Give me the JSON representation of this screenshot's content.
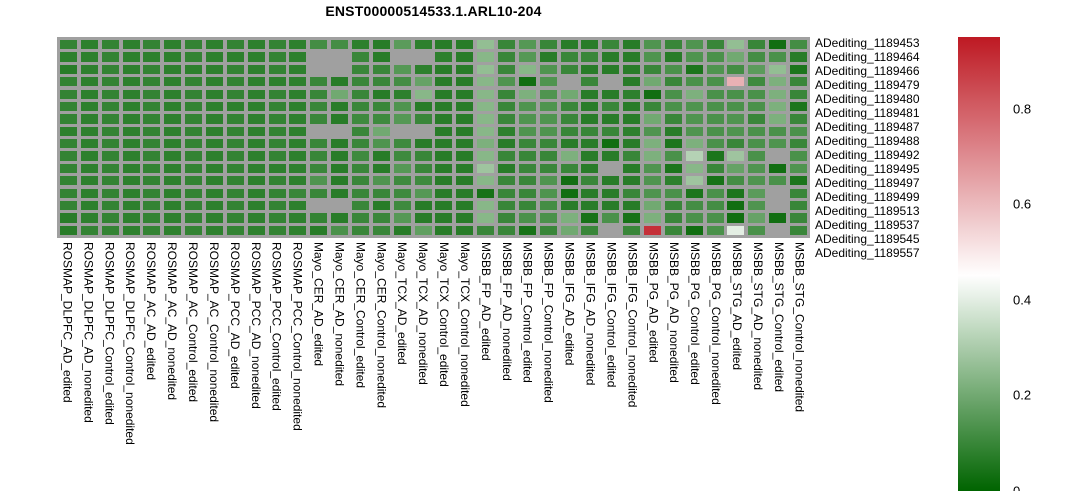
{
  "chart_data": {
    "type": "heatmap",
    "title": "ENST00000514533.1.ARL10-204",
    "legend_position": "right",
    "value_range": [
      0,
      0.95
    ],
    "colorbar_ticks": [
      0.8,
      0.6,
      0.4,
      0.2,
      0
    ],
    "colors": {
      "low": "#006400",
      "mid": "#ffffff",
      "high": "#be1923",
      "na": "#a0a0a0",
      "mid_value": 0.45,
      "max_value": 0.95
    },
    "rows": [
      "ADediting_1189453",
      "ADediting_1189464",
      "ADediting_1189466",
      "ADediting_1189479",
      "ADediting_1189480",
      "ADediting_1189481",
      "ADediting_1189487",
      "ADediting_1189488",
      "ADediting_1189492",
      "ADediting_1189495",
      "ADediting_1189497",
      "ADediting_1189499",
      "ADediting_1189513",
      "ADediting_1189537",
      "ADediting_1189545",
      "ADediting_1189557"
    ],
    "columns": [
      "ROSMAP_DLPFC_AD_edited",
      "ROSMAP_DLPFC_AD_nonedited",
      "ROSMAP_DLPFC_Control_edited",
      "ROSMAP_DLPFC_Control_nonedited",
      "ROSMAP_AC_AD_edited",
      "ROSMAP_AC_AD_nonedited",
      "ROSMAP_AC_Control_edited",
      "ROSMAP_AC_Control_nonedited",
      "ROSMAP_PCC_AD_edited",
      "ROSMAP_PCC_AD_nonedited",
      "ROSMAP_PCC_Control_edited",
      "ROSMAP_PCC_Control_nonedited",
      "Mayo_CER_AD_edited",
      "Mayo_CER_AD_nonedited",
      "Mayo_CER_Control_edited",
      "Mayo_CER_Control_nonedited",
      "Mayo_TCX_AD_edited",
      "Mayo_TCX_AD_nonedited",
      "Mayo_TCX_Control_edited",
      "Mayo_TCX_Control_nonedited",
      "MSBB_FP_AD_edited",
      "MSBB_FP_AD_nonedited",
      "MSBB_FP_Control_edited",
      "MSBB_FP_Control_nonedited",
      "MSBB_IFG_AD_edited",
      "MSBB_IFG_AD_nonedited",
      "MSBB_IFG_Control_edited",
      "MSBB_IFG_Control_nonedited",
      "MSBB_PG_AD_edited",
      "MSBB_PG_AD_nonedited",
      "MSBB_PG_Control_edited",
      "MSBB_PG_Control_nonedited",
      "MSBB_STG_AD_edited",
      "MSBB_STG_AD_nonedited",
      "MSBB_STG_Control_edited",
      "MSBB_STG_Control_nonedited"
    ],
    "values": [
      [
        0.09,
        0.08,
        0.09,
        0.08,
        0.09,
        0.08,
        0.09,
        0.08,
        0.09,
        0.08,
        0.09,
        0.08,
        0.12,
        0.12,
        0.08,
        0.07,
        0.16,
        0.08,
        0.07,
        0.07,
        0.26,
        0.1,
        0.15,
        0.1,
        0.07,
        0.07,
        0.1,
        0.07,
        0.14,
        0.1,
        0.14,
        0.1,
        0.26,
        0.1,
        0.03,
        0.12
      ],
      [
        0.08,
        0.08,
        0.09,
        0.08,
        0.08,
        0.08,
        0.09,
        0.08,
        0.08,
        0.08,
        0.09,
        0.08,
        null,
        null,
        0.1,
        0.07,
        null,
        null,
        0.08,
        0.07,
        0.24,
        0.1,
        0.15,
        0.07,
        0.1,
        0.1,
        0.07,
        0.07,
        0.14,
        0.07,
        0.14,
        0.13,
        0.2,
        0.12,
        0.13,
        0.07
      ],
      [
        0.07,
        0.08,
        0.09,
        0.08,
        0.09,
        0.08,
        0.08,
        0.08,
        0.09,
        0.08,
        0.09,
        0.08,
        null,
        null,
        0.1,
        0.1,
        0.15,
        0.08,
        0.07,
        0.07,
        0.26,
        0.1,
        0.24,
        0.14,
        0.1,
        0.07,
        0.07,
        0.07,
        0.1,
        0.13,
        0.05,
        0.14,
        0.12,
        0.16,
        0.26,
        0.05
      ],
      [
        0.09,
        0.08,
        0.09,
        0.08,
        0.09,
        0.08,
        0.09,
        0.08,
        0.09,
        0.08,
        0.08,
        0.08,
        0.1,
        0.07,
        0.1,
        0.1,
        0.12,
        0.18,
        0.07,
        0.07,
        0.24,
        0.14,
        0.03,
        0.14,
        null,
        0.1,
        null,
        0.07,
        0.2,
        0.1,
        0.13,
        0.13,
        0.62,
        0.11,
        0.22,
        0.1
      ],
      [
        0.09,
        0.08,
        0.09,
        0.08,
        0.09,
        0.08,
        0.09,
        0.08,
        0.09,
        0.08,
        0.09,
        0.08,
        0.1,
        0.2,
        0.1,
        0.07,
        0.08,
        0.24,
        0.07,
        0.07,
        0.24,
        0.1,
        0.22,
        0.14,
        0.2,
        0.07,
        0.07,
        0.08,
        0.03,
        0.13,
        0.22,
        0.13,
        0.13,
        0.13,
        0.22,
        0.1
      ],
      [
        0.09,
        0.08,
        0.09,
        0.08,
        0.09,
        0.08,
        0.09,
        0.08,
        0.08,
        0.08,
        0.09,
        0.08,
        0.1,
        0.07,
        0.1,
        0.1,
        0.14,
        0.07,
        0.07,
        0.07,
        0.24,
        0.1,
        0.14,
        0.14,
        0.1,
        0.07,
        0.1,
        0.07,
        0.1,
        0.13,
        0.14,
        0.13,
        0.13,
        0.13,
        0.22,
        0.05
      ],
      [
        0.09,
        0.08,
        0.09,
        0.08,
        0.09,
        0.08,
        0.09,
        0.08,
        0.09,
        0.08,
        0.09,
        0.08,
        0.1,
        0.07,
        0.11,
        0.11,
        0.15,
        0.1,
        0.07,
        0.07,
        0.24,
        0.1,
        0.14,
        0.14,
        0.1,
        0.07,
        0.07,
        0.07,
        0.2,
        0.1,
        0.14,
        0.13,
        0.14,
        0.1,
        0.22,
        0.1
      ],
      [
        0.08,
        0.08,
        0.09,
        0.08,
        0.09,
        0.08,
        0.09,
        0.08,
        0.09,
        0.08,
        0.09,
        0.08,
        null,
        null,
        0.1,
        0.2,
        null,
        null,
        0.07,
        0.07,
        0.24,
        0.08,
        0.14,
        0.14,
        0.1,
        0.1,
        0.1,
        0.08,
        0.14,
        0.07,
        0.14,
        0.13,
        0.14,
        0.13,
        0.13,
        0.13
      ],
      [
        0.09,
        0.08,
        0.09,
        0.08,
        0.09,
        0.08,
        0.09,
        0.08,
        0.09,
        0.08,
        0.09,
        0.08,
        0.1,
        0.07,
        0.1,
        0.14,
        0.11,
        0.07,
        0.07,
        0.07,
        0.22,
        0.07,
        0.1,
        0.1,
        0.07,
        0.07,
        0.03,
        0.07,
        0.22,
        0.05,
        0.22,
        0.13,
        0.1,
        0.13,
        0.14,
        0.1
      ],
      [
        0.09,
        0.08,
        0.09,
        0.08,
        0.09,
        0.08,
        0.09,
        0.08,
        0.09,
        0.08,
        0.09,
        0.08,
        0.1,
        0.07,
        0.11,
        0.07,
        0.11,
        0.1,
        0.07,
        0.07,
        0.24,
        0.1,
        0.1,
        0.1,
        0.22,
        0.07,
        0.07,
        0.1,
        0.22,
        0.13,
        0.32,
        0.05,
        0.28,
        0.13,
        null,
        0.13
      ],
      [
        0.09,
        0.08,
        0.09,
        0.08,
        0.09,
        0.08,
        0.09,
        0.08,
        0.09,
        0.08,
        0.08,
        0.08,
        0.1,
        0.07,
        0.1,
        0.07,
        0.15,
        0.1,
        0.07,
        0.07,
        0.28,
        0.07,
        0.1,
        0.1,
        0.1,
        0.07,
        null,
        0.07,
        0.14,
        0.05,
        0.24,
        0.1,
        0.18,
        0.14,
        0.03,
        0.14
      ],
      [
        0.09,
        0.08,
        0.09,
        0.08,
        0.09,
        0.08,
        0.09,
        0.08,
        0.09,
        0.08,
        0.09,
        0.08,
        0.14,
        0.07,
        0.1,
        0.14,
        0.11,
        0.11,
        0.07,
        0.07,
        0.24,
        0.1,
        0.1,
        0.14,
        0.03,
        0.1,
        0.07,
        0.07,
        0.14,
        0.08,
        0.28,
        0.04,
        0.12,
        0.14,
        0.13,
        0.05
      ],
      [
        0.09,
        0.08,
        0.09,
        0.08,
        0.09,
        0.08,
        0.09,
        0.08,
        0.09,
        0.08,
        0.09,
        0.1,
        0.1,
        0.07,
        0.1,
        0.1,
        0.11,
        0.15,
        0.07,
        0.07,
        0.04,
        0.1,
        0.1,
        0.14,
        0.03,
        0.07,
        0.07,
        0.1,
        0.14,
        0.13,
        0.05,
        0.13,
        0.05,
        0.16,
        null,
        0.1
      ],
      [
        0.09,
        0.08,
        0.09,
        0.08,
        0.09,
        0.08,
        0.09,
        0.08,
        0.09,
        0.08,
        0.09,
        0.08,
        null,
        null,
        0.1,
        0.07,
        0.11,
        0.07,
        0.07,
        0.07,
        0.24,
        0.1,
        0.1,
        0.12,
        0.07,
        0.07,
        0.07,
        0.07,
        0.2,
        0.1,
        0.12,
        0.12,
        0.03,
        0.14,
        null,
        0.1
      ],
      [
        0.07,
        0.08,
        0.09,
        0.08,
        0.09,
        0.08,
        0.09,
        0.08,
        0.09,
        0.08,
        0.09,
        0.08,
        0.09,
        0.07,
        0.1,
        0.1,
        0.15,
        0.07,
        0.07,
        0.07,
        0.24,
        0.1,
        0.13,
        0.13,
        0.22,
        0.04,
        0.13,
        0.04,
        0.22,
        0.1,
        0.13,
        0.13,
        0.03,
        0.18,
        0.03,
        0.1
      ],
      [
        0.07,
        0.09,
        0.09,
        0.08,
        0.09,
        0.08,
        0.09,
        0.08,
        0.09,
        0.08,
        0.09,
        0.08,
        0.07,
        0.13,
        0.1,
        0.1,
        0.07,
        0.17,
        0.07,
        0.07,
        0.1,
        0.1,
        0.04,
        0.1,
        0.2,
        0.1,
        null,
        0.1,
        0.9,
        0.1,
        0.03,
        0.13,
        0.4,
        0.13,
        null,
        0.1
      ]
    ]
  }
}
